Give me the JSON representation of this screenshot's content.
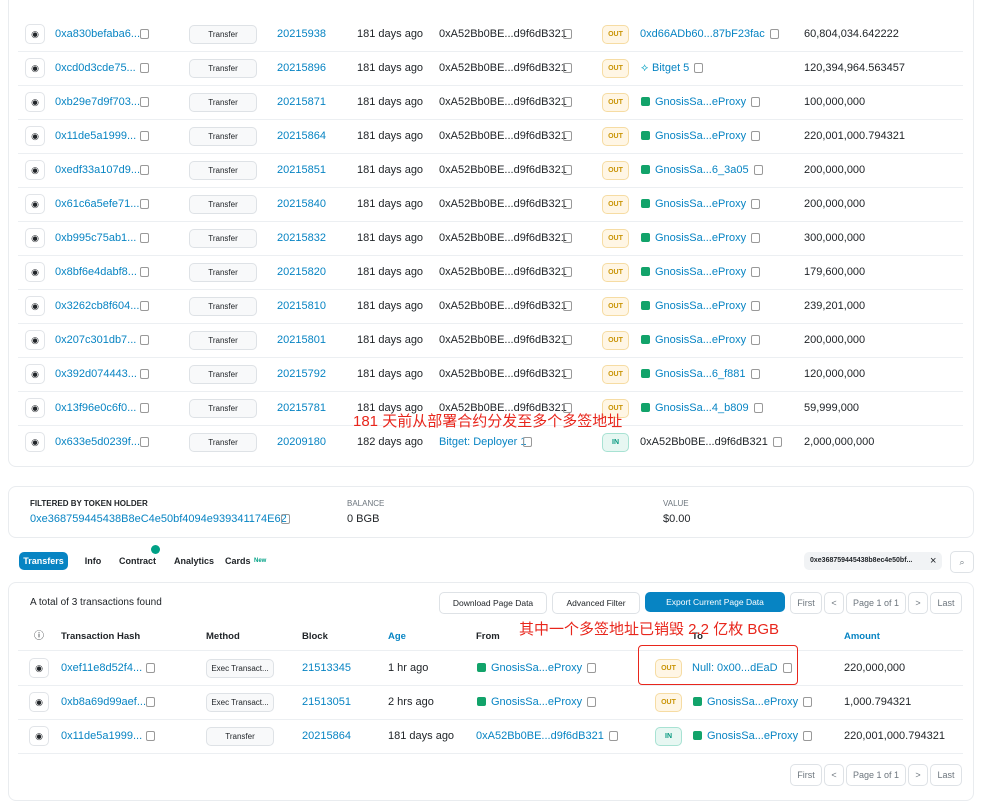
{
  "top_table": {
    "rows": [
      [
        "0xa830befaba6...",
        "Transfer",
        "20215938",
        "181 days ago",
        "0xA52Bb0BE...d9f6dB321",
        "OUT",
        "0xd66ADb60...87bF23fac",
        "60,804,034.642222"
      ],
      [
        "0xcd0d3cde75...",
        "Transfer",
        "20215896",
        "181 days ago",
        "0xA52Bb0BE...d9f6dB321",
        "OUT",
        "Bitget 5",
        "120,394,964.563457"
      ],
      [
        "0xb29e7d9f703...",
        "Transfer",
        "20215871",
        "181 days ago",
        "0xA52Bb0BE...d9f6dB321",
        "OUT",
        "GnosisSa...eProxy",
        "100,000,000"
      ],
      [
        "0x11de5a1999...",
        "Transfer",
        "20215864",
        "181 days ago",
        "0xA52Bb0BE...d9f6dB321",
        "OUT",
        "GnosisSa...eProxy",
        "220,001,000.794321"
      ],
      [
        "0xedf33a107d9...",
        "Transfer",
        "20215851",
        "181 days ago",
        "0xA52Bb0BE...d9f6dB321",
        "OUT",
        "GnosisSa...6_3a05",
        "200,000,000"
      ],
      [
        "0x61c6a5efe71...",
        "Transfer",
        "20215840",
        "181 days ago",
        "0xA52Bb0BE...d9f6dB321",
        "OUT",
        "GnosisSa...eProxy",
        "200,000,000"
      ],
      [
        "0xb995c75ab1...",
        "Transfer",
        "20215832",
        "181 days ago",
        "0xA52Bb0BE...d9f6dB321",
        "OUT",
        "GnosisSa...eProxy",
        "300,000,000"
      ],
      [
        "0x8bf6e4dabf8...",
        "Transfer",
        "20215820",
        "181 days ago",
        "0xA52Bb0BE...d9f6dB321",
        "OUT",
        "GnosisSa...eProxy",
        "179,600,000"
      ],
      [
        "0x3262cb8f604...",
        "Transfer",
        "20215810",
        "181 days ago",
        "0xA52Bb0BE...d9f6dB321",
        "OUT",
        "GnosisSa...eProxy",
        "239,201,000"
      ],
      [
        "0x207c301db7...",
        "Transfer",
        "20215801",
        "181 days ago",
        "0xA52Bb0BE...d9f6dB321",
        "OUT",
        "GnosisSa...eProxy",
        "200,000,000"
      ],
      [
        "0x392d074443...",
        "Transfer",
        "20215792",
        "181 days ago",
        "0xA52Bb0BE...d9f6dB321",
        "OUT",
        "GnosisSa...6_f881",
        "120,000,000"
      ],
      [
        "0x13f96e0c6f0...",
        "Transfer",
        "20215781",
        "181 days ago",
        "0xA52Bb0BE...d9f6dB321",
        "OUT",
        "GnosisSa...4_b809",
        "59,999,000"
      ],
      [
        "0x633e5d0239f...",
        "Transfer",
        "20209180",
        "182 days ago",
        "Bitget: Deployer 1",
        "IN",
        "0xA52Bb0BE...d9f6dB321",
        "2,000,000,000"
      ]
    ]
  },
  "annotation_top": "181 天前从部署合约分发至多个多签地址",
  "filter": {
    "label": "FILTERED BY TOKEN HOLDER",
    "address": "0xe368759445438B8eC4e50bf4094e939341174E62",
    "balance_label": "BALANCE",
    "balance": "0 BGB",
    "value_label": "VALUE",
    "value": "$0.00"
  },
  "tabs": [
    "Transfers",
    "Info",
    "Contract",
    "Analytics",
    "Cards"
  ],
  "tab_badge": "New",
  "search": "0xe368759445438b8ec4e50bf...",
  "toolbar": {
    "summary": "A total of 3 transactions found",
    "download": "Download Page Data",
    "filter": "Advanced Filter",
    "export": "Export Current Page Data",
    "first": "First",
    "page": "Page 1 of 1",
    "last": "Last"
  },
  "headers": [
    "Transaction Hash",
    "Method",
    "Block",
    "Age",
    "From",
    "To",
    "Amount"
  ],
  "annotation_bottom": "其中一个多签地址已销毁 2.2 亿枚 BGB",
  "bottom_table": {
    "rows": [
      [
        "0xef11e8d52f4...",
        "Exec Transact...",
        "21513345",
        "1 hr ago",
        "GnosisSa...eProxy",
        "OUT",
        "Null: 0x00...dEaD",
        "220,000,000"
      ],
      [
        "0xb8a69d99aef...",
        "Exec Transact...",
        "21513051",
        "2 hrs ago",
        "GnosisSa...eProxy",
        "OUT",
        "GnosisSa...eProxy",
        "1,000.794321"
      ],
      [
        "0x11de5a1999...",
        "Transfer",
        "20215864",
        "181 days ago",
        "0xA52Bb0BE...d9f6dB321",
        "IN",
        "GnosisSa...eProxy",
        "220,001,000.794321"
      ]
    ]
  },
  "footer": {
    "first": "First",
    "page": "Page 1 of 1",
    "last": "Last"
  }
}
